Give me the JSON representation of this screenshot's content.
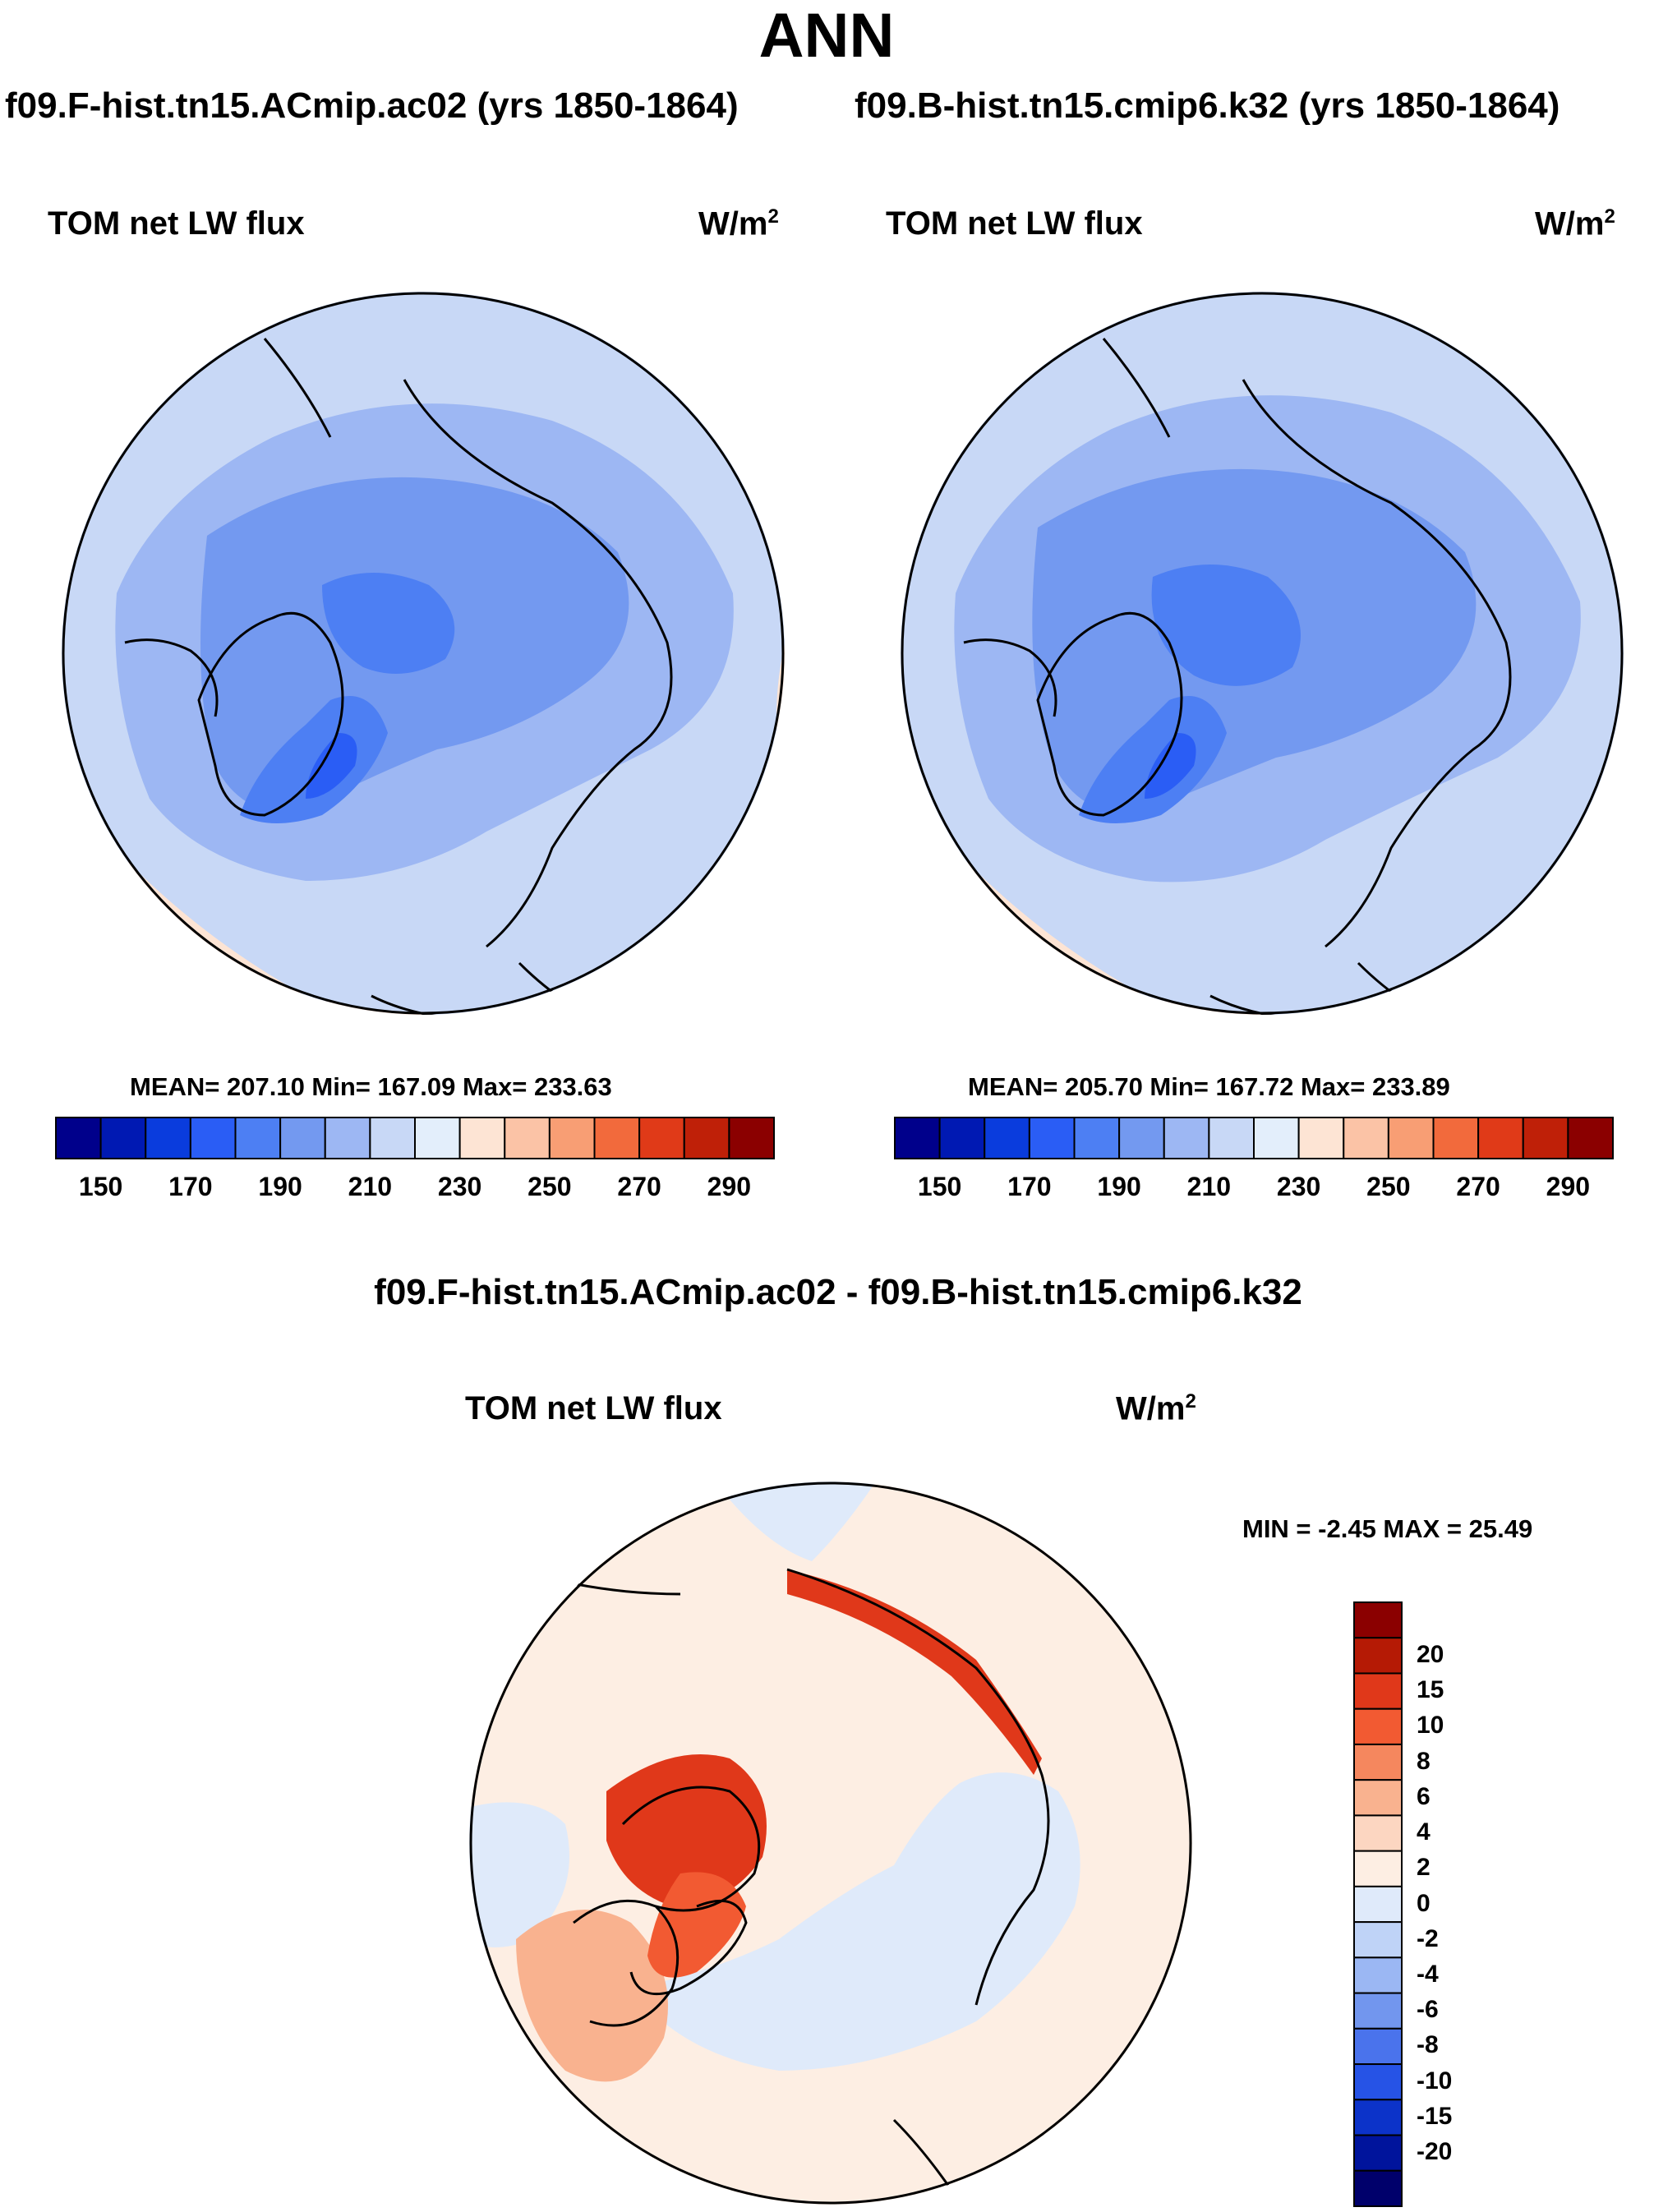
{
  "title": "ANN",
  "case1_title": "f09.F-hist.tn15.ACmip.ac02 (yrs 1850-1864)",
  "case2_title": "f09.B-hist.tn15.cmip6.k32 (yrs 1850-1864)",
  "diff_title": "f09.F-hist.tn15.ACmip.ac02 - f09.B-hist.tn15.cmip6.k32",
  "panels": [
    {
      "variable": "TOM net LW flux",
      "units_base": "W/m",
      "units_exp": "2",
      "stats": "MEAN= 207.10  Min= 167.09  Max= 233.63",
      "mean": 207.1,
      "min": 167.09,
      "max": 233.63
    },
    {
      "variable": "TOM net LW flux",
      "units_base": "W/m",
      "units_exp": "2",
      "stats": "MEAN= 205.70  Min= 167.72  Max= 233.89",
      "mean": 205.7,
      "min": 167.72,
      "max": 233.89
    }
  ],
  "diff_panel": {
    "variable": "TOM net LW flux",
    "units_base": "W/m",
    "units_exp": "2",
    "stats": "MIN =  -2.45 MAX =  25.49",
    "min": -2.45,
    "max": 25.49
  },
  "abs_colorbar": {
    "colors": [
      "#00008b",
      "#0019b3",
      "#0a3cdd",
      "#2a5df5",
      "#4d7ff3",
      "#7399f0",
      "#9db7f3",
      "#c8d8f6",
      "#e3eefb",
      "#fde4d4",
      "#fbc3a6",
      "#f89e74",
      "#f26a3c",
      "#e03a18",
      "#bf2008",
      "#8b0000"
    ],
    "ticks": [
      "150",
      "170",
      "190",
      "210",
      "230",
      "250",
      "270",
      "290"
    ]
  },
  "diff_colorbar": {
    "colors": [
      "#8b0000",
      "#b51a05",
      "#e0381a",
      "#f25a32",
      "#f5875e",
      "#f9b28f",
      "#fcd6c1",
      "#fdeee3",
      "#dfeafa",
      "#bfd3f7",
      "#9bb7f3",
      "#7296ee",
      "#4a73ec",
      "#2653e6",
      "#0c33c9",
      "#00149c",
      "#00006b"
    ],
    "ticks": [
      "20",
      "15",
      "10",
      "8",
      "6",
      "4",
      "2",
      "0",
      "-2",
      "-4",
      "-6",
      "-8",
      "-10",
      "-15",
      "-20"
    ]
  }
}
